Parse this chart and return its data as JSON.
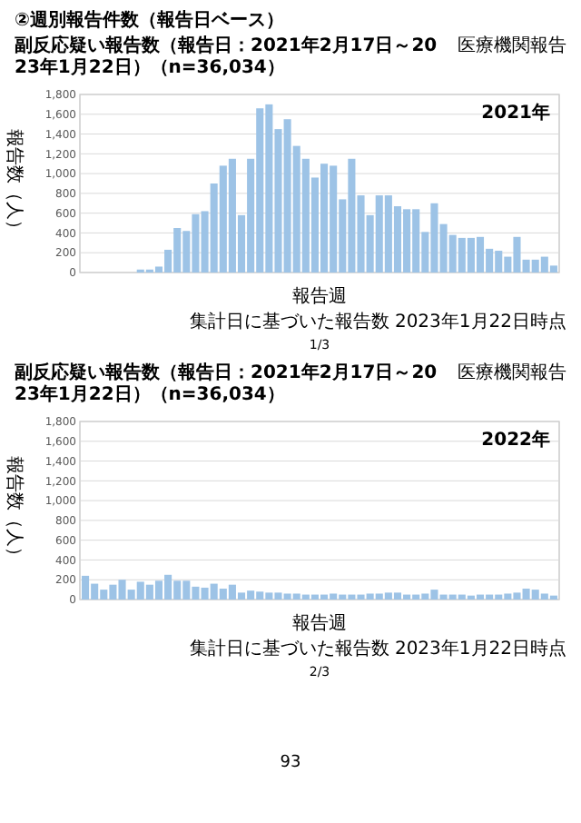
{
  "chart_data": [
    {
      "type": "bar",
      "title": "②週別報告件数（報告日ベース）",
      "subtitle": "副反応疑い報告数（報告日：2021年2月17日～2023年1月22日）（n=36,034）",
      "ylabel": "報告数（人）",
      "xlabel": "報告週",
      "annotations": [
        "医療機関報告",
        "2021年",
        "集計日に基づいた報告数 2023年1月22日時点",
        "1/3"
      ],
      "categories": [
        null,
        null,
        null,
        null,
        null,
        null,
        null,
        null,
        null,
        null,
        null,
        null,
        null,
        null,
        null,
        null,
        null,
        null,
        null,
        null,
        null,
        null,
        null,
        null,
        null,
        null,
        null,
        null,
        null,
        null,
        null,
        null,
        null,
        null,
        null,
        null,
        null,
        null,
        null,
        null,
        null,
        null,
        null,
        null,
        null,
        null,
        null,
        null,
        null,
        null,
        null,
        null
      ],
      "values": [
        0,
        0,
        0,
        0,
        0,
        0,
        30,
        30,
        60,
        230,
        450,
        420,
        590,
        620,
        900,
        1080,
        1150,
        580,
        1150,
        1660,
        1700,
        1450,
        1550,
        1280,
        1150,
        960,
        1100,
        1080,
        740,
        1150,
        780,
        580,
        780,
        780,
        670,
        640,
        640,
        410,
        700,
        490,
        380,
        350,
        350,
        360,
        240,
        220,
        160,
        360,
        130,
        130,
        160,
        70
      ],
      "color": "#9dc3e6",
      "ylim": [
        0,
        1800
      ],
      "yticks": [
        0,
        {
          "value": 200,
          "label": "200"
        },
        {
          "value": 400,
          "label": "400"
        },
        {
          "value": 600,
          "label": "600"
        },
        {
          "value": 800,
          "label": "800"
        },
        {
          "value": 1000,
          "label": "1,000"
        },
        {
          "value": 1200,
          "label": "1,200"
        },
        {
          "value": 1400,
          "label": "1,400"
        },
        {
          "value": 1600,
          "label": "1,600"
        },
        {
          "value": 1800,
          "label": "1,800"
        }
      ],
      "grid": "y"
    },
    {
      "type": "bar",
      "subtitle": "副反応疑い報告数（報告日：2021年2月17日～2023年1月22日）（n=36,034）",
      "ylabel": "報告数（人）",
      "xlabel": "報告週",
      "annotations": [
        "医療機関報告",
        "2022年",
        "集計日に基づいた報告数 2023年1月22日時点",
        "2/3",
        "93"
      ],
      "categories": [
        null,
        null,
        null,
        null,
        null,
        null,
        null,
        null,
        null,
        null,
        null,
        null,
        null,
        null,
        null,
        null,
        null,
        null,
        null,
        null,
        null,
        null,
        null,
        null,
        null,
        null,
        null,
        null,
        null,
        null,
        null,
        null,
        null,
        null,
        null,
        null,
        null,
        null,
        null,
        null,
        null,
        null,
        null,
        null,
        null,
        null,
        null,
        null,
        null,
        null,
        null,
        null
      ],
      "values": [
        240,
        160,
        100,
        150,
        200,
        100,
        180,
        150,
        190,
        250,
        190,
        190,
        130,
        120,
        160,
        110,
        150,
        70,
        90,
        80,
        70,
        70,
        60,
        60,
        50,
        50,
        50,
        60,
        50,
        50,
        50,
        60,
        60,
        70,
        70,
        50,
        50,
        60,
        100,
        50,
        50,
        50,
        40,
        50,
        50,
        50,
        60,
        70,
        110,
        100,
        60,
        40
      ],
      "color": "#9dc3e6",
      "ylim": [
        0,
        1800
      ],
      "yticks": [
        0,
        {
          "value": 200,
          "label": "200"
        },
        {
          "value": 400,
          "label": "400"
        },
        {
          "value": 600,
          "label": "600"
        },
        {
          "value": 800,
          "label": "800"
        },
        {
          "value": 1000,
          "label": "1,000"
        },
        {
          "value": 1200,
          "label": "1,200"
        },
        {
          "value": 1400,
          "label": "1,400"
        },
        {
          "value": 1600,
          "label": "1,600"
        },
        {
          "value": 1800,
          "label": "1,800"
        }
      ],
      "grid": "y"
    }
  ]
}
